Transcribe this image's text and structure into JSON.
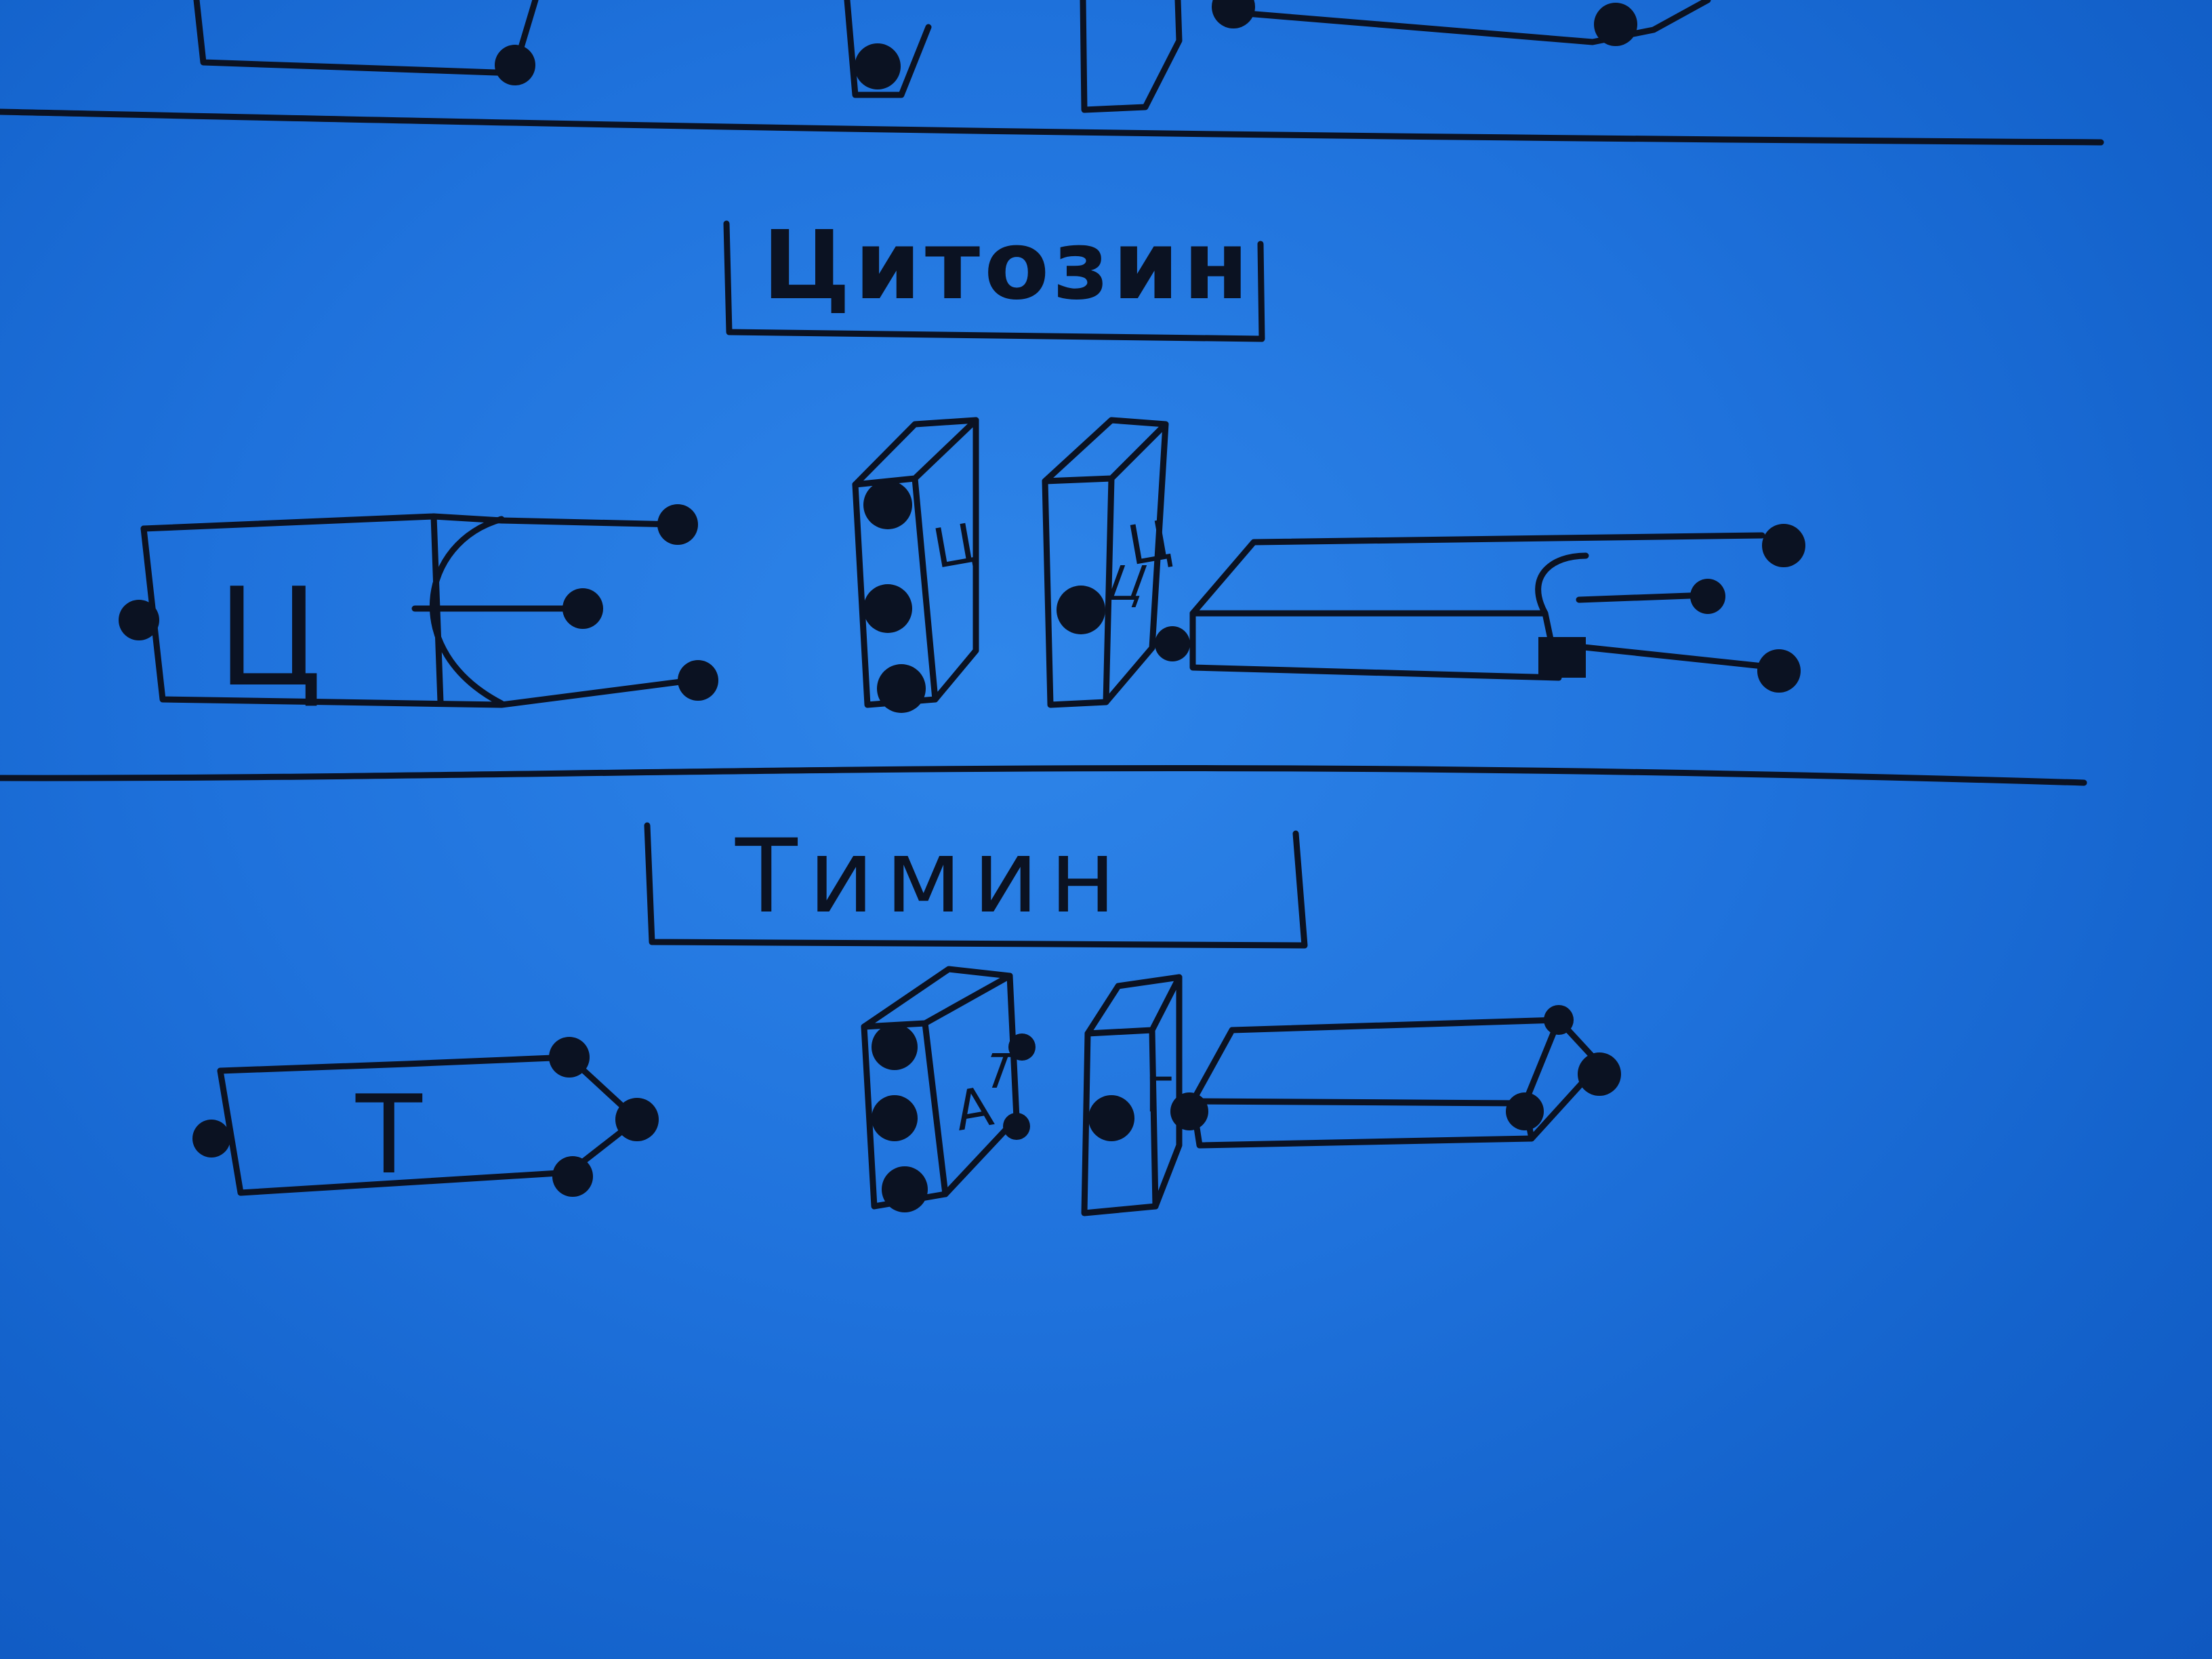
{
  "sections": [
    {
      "title": "Цитозин",
      "symbol": "Ц",
      "front_labels": [
        "Ц",
        "Ц"
      ],
      "flat_label": "Ц"
    },
    {
      "title": "Тимин",
      "symbol": "Т",
      "front_labels": [
        "А",
        "Г"
      ],
      "flat_label": "Т"
    }
  ],
  "colors": {
    "board": "#1f72dc",
    "ink": "#0b1222"
  }
}
